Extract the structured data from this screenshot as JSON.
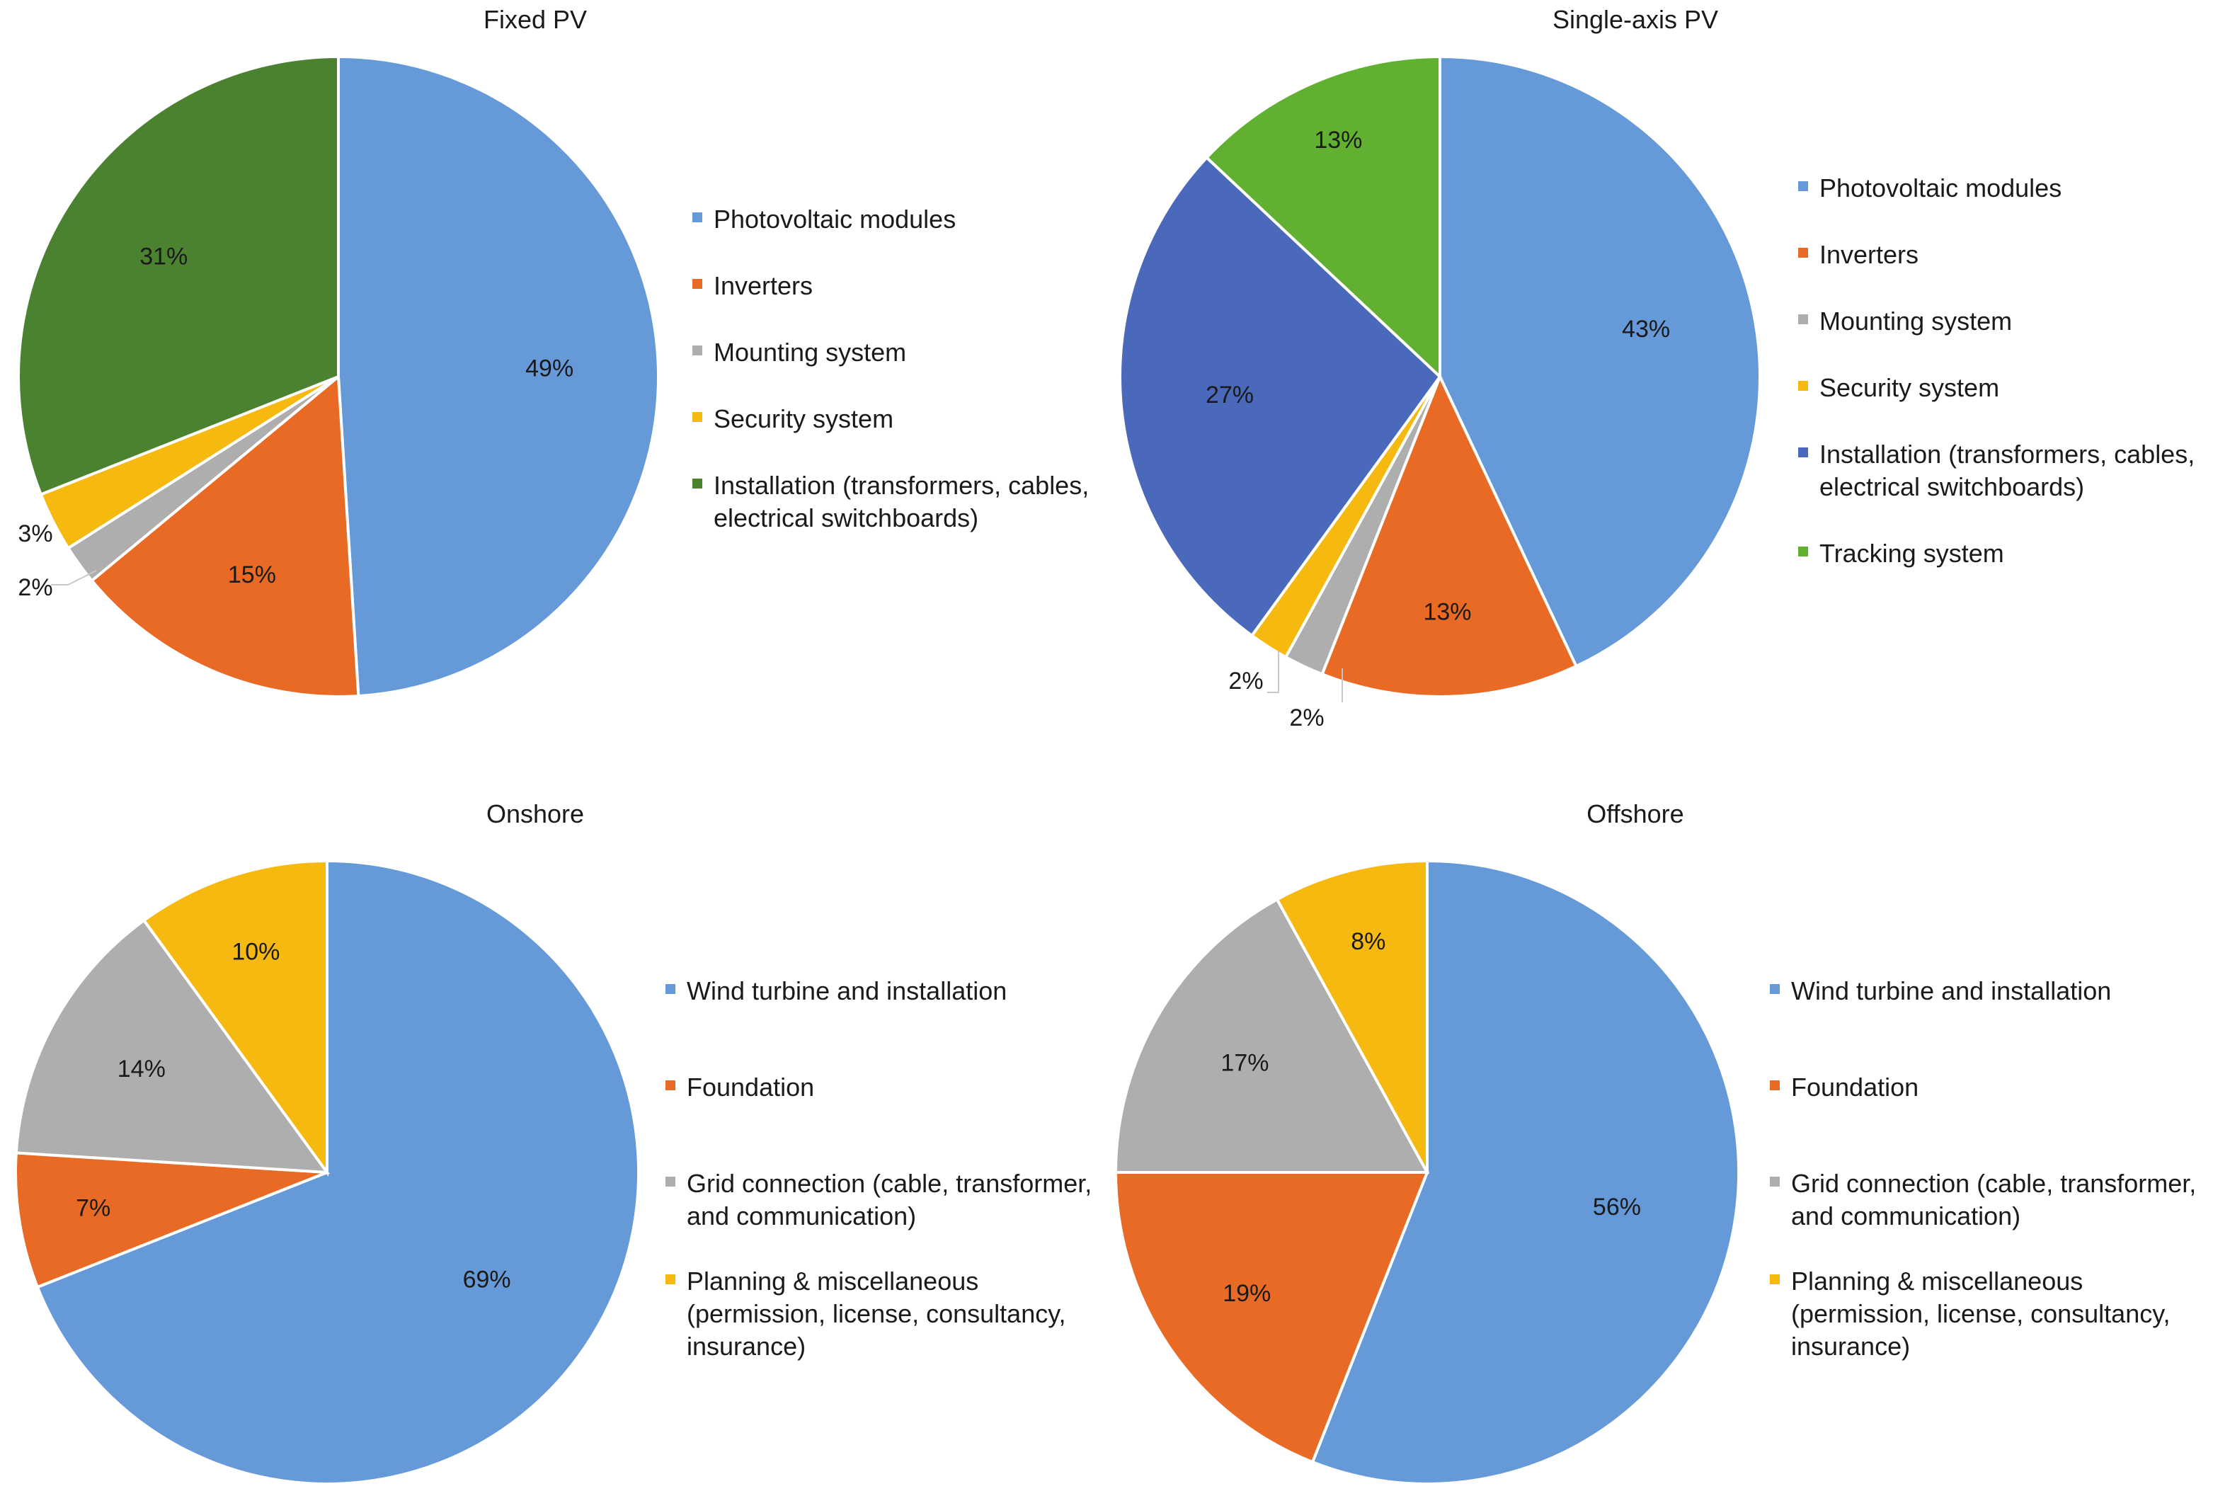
{
  "chart_data": [
    {
      "type": "pie",
      "title": "Fixed PV",
      "categories": [
        "Photovoltaic modules",
        "Inverters",
        "Mounting system",
        "Security system",
        "Installation (transformers, cables, electrical switchboards)"
      ],
      "values": [
        49,
        15,
        2,
        3,
        31
      ],
      "labels": [
        "49%",
        "15%",
        "2%",
        "3%",
        "31%"
      ],
      "colors": [
        "#6699d8",
        "#e96a24",
        "#aeaeae",
        "#f6b910",
        "#4a8230"
      ],
      "legend": {
        "position": "right",
        "entries": [
          {
            "lines": [
              "Photovoltaic modules"
            ],
            "color": "#6699d8"
          },
          {
            "lines": [
              "Inverters"
            ],
            "color": "#e96a24"
          },
          {
            "lines": [
              "Mounting system"
            ],
            "color": "#aeaeae"
          },
          {
            "lines": [
              "Security system"
            ],
            "color": "#f6b910"
          },
          {
            "lines": [
              "Installation (transformers, cables,",
              "electrical switchboards)"
            ],
            "color": "#4a8230"
          }
        ]
      },
      "start_angle": "top",
      "direction": "clockwise"
    },
    {
      "type": "pie",
      "title": "Single-axis PV",
      "categories": [
        "Photovoltaic modules",
        "Inverters",
        "Mounting system",
        "Security system",
        "Installation (transformers, cables, electrical switchboards)",
        "Tracking system"
      ],
      "values": [
        43,
        13,
        2,
        2,
        27,
        13
      ],
      "labels": [
        "43%",
        "13%",
        "2%",
        "2%",
        "27%",
        "13%"
      ],
      "colors": [
        "#6699d8",
        "#e96a24",
        "#aeaeae",
        "#f6b910",
        "#4a69bb",
        "#62b032"
      ],
      "legend": {
        "position": "right",
        "entries": [
          {
            "lines": [
              "Photovoltaic modules"
            ],
            "color": "#6699d8"
          },
          {
            "lines": [
              "Inverters"
            ],
            "color": "#e96a24"
          },
          {
            "lines": [
              "Mounting system"
            ],
            "color": "#aeaeae"
          },
          {
            "lines": [
              "Security system"
            ],
            "color": "#f6b910"
          },
          {
            "lines": [
              "Installation (transformers, cables,",
              "electrical switchboards)"
            ],
            "color": "#4a69bb"
          },
          {
            "lines": [
              "Tracking system"
            ],
            "color": "#62b032"
          }
        ]
      },
      "start_angle": "top",
      "direction": "clockwise"
    },
    {
      "type": "pie",
      "title": "Onshore",
      "categories": [
        "Wind turbine and installation",
        "Foundation",
        "Grid connection (cable, transformer, and communication)",
        "Planning & miscellaneous (permission, license, consultancy, insurance)"
      ],
      "values": [
        69,
        7,
        14,
        10
      ],
      "labels": [
        "69%",
        "7%",
        "14%",
        "10%"
      ],
      "colors": [
        "#6699d8",
        "#e96a24",
        "#aeaeae",
        "#f6b910"
      ],
      "legend": {
        "position": "right",
        "entries": [
          {
            "lines": [
              "Wind turbine and installation"
            ],
            "color": "#6699d8"
          },
          {
            "lines": [
              "Foundation"
            ],
            "color": "#e96a24"
          },
          {
            "lines": [
              "Grid connection (cable, transformer,",
              "and communication)"
            ],
            "color": "#aeaeae"
          },
          {
            "lines": [
              "Planning & miscellaneous",
              "(permission, license, consultancy,",
              "insurance)"
            ],
            "color": "#f6b910"
          }
        ]
      },
      "start_angle": "top",
      "direction": "clockwise"
    },
    {
      "type": "pie",
      "title": "Offshore",
      "categories": [
        "Wind turbine and installation",
        "Foundation",
        "Grid connection (cable, transformer, and communication)",
        "Planning & miscellaneous (permission, license, consultancy, insurance)"
      ],
      "values": [
        56,
        19,
        17,
        8
      ],
      "labels": [
        "56%",
        "19%",
        "17%",
        "8%"
      ],
      "colors": [
        "#6699d8",
        "#e96a24",
        "#aeaeae",
        "#f6b910"
      ],
      "legend": {
        "position": "right",
        "entries": [
          {
            "lines": [
              "Wind turbine and installation"
            ],
            "color": "#6699d8"
          },
          {
            "lines": [
              "Foundation"
            ],
            "color": "#e96a24"
          },
          {
            "lines": [
              "Grid connection (cable, transformer,",
              "and communication)"
            ],
            "color": "#aeaeae"
          },
          {
            "lines": [
              "Planning & miscellaneous",
              "(permission, license, consultancy,",
              "insurance)"
            ],
            "color": "#f6b910"
          }
        ]
      },
      "start_angle": "top",
      "direction": "clockwise"
    }
  ]
}
